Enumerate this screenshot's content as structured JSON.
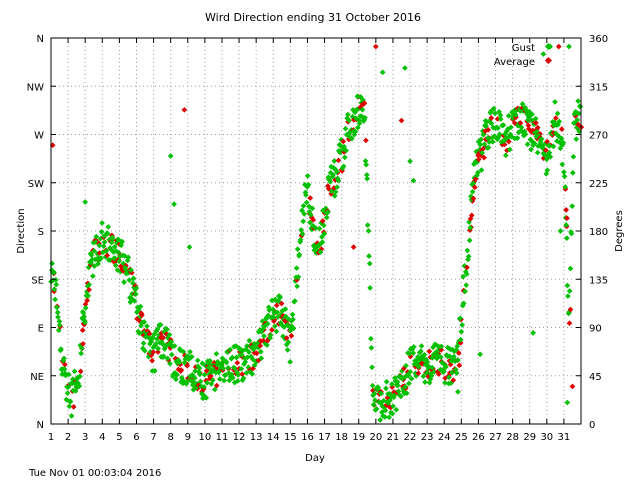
{
  "chart_data": {
    "type": "scatter",
    "title": "Wird Direction ending 31 October 2016",
    "xlabel": "Day",
    "ylabel_left": "Direction",
    "ylabel_right": "Degrees",
    "footer": "Tue Nov 01 00:03:04 2016",
    "xlim": [
      1,
      32
    ],
    "ylim": [
      0,
      360
    ],
    "grid": true,
    "legend": "top-right",
    "x_ticks": [
      "1",
      "2",
      "3",
      "4",
      "5",
      "6",
      "7",
      "8",
      "9",
      "10",
      "11",
      "12",
      "13",
      "14",
      "15",
      "16",
      "17",
      "18",
      "19",
      "20",
      "21",
      "22",
      "23",
      "24",
      "25",
      "26",
      "27",
      "28",
      "29",
      "30",
      "31"
    ],
    "left_ticks": [
      {
        "value": 0,
        "label": "N"
      },
      {
        "value": 45,
        "label": "NE"
      },
      {
        "value": 90,
        "label": "E"
      },
      {
        "value": 135,
        "label": "SE"
      },
      {
        "value": 180,
        "label": "S"
      },
      {
        "value": 225,
        "label": "SW"
      },
      {
        "value": 270,
        "label": "W"
      },
      {
        "value": 315,
        "label": "NW"
      },
      {
        "value": 360,
        "label": "N"
      }
    ],
    "right_ticks": [
      "0",
      "45",
      "90",
      "135",
      "180",
      "225",
      "270",
      "315",
      "360"
    ],
    "trend": [
      [
        1.0,
        140
      ],
      [
        1.3,
        120
      ],
      [
        1.6,
        70
      ],
      [
        1.9,
        40
      ],
      [
        2.2,
        25
      ],
      [
        2.6,
        45
      ],
      [
        3.0,
        110
      ],
      [
        3.5,
        160
      ],
      [
        4.0,
        170
      ],
      [
        4.5,
        165
      ],
      [
        5.0,
        160
      ],
      [
        5.5,
        140
      ],
      [
        6.0,
        110
      ],
      [
        6.5,
        80
      ],
      [
        7.0,
        65
      ],
      [
        7.5,
        80
      ],
      [
        8.0,
        65
      ],
      [
        8.5,
        55
      ],
      [
        9.0,
        55
      ],
      [
        9.5,
        45
      ],
      [
        10.0,
        40
      ],
      [
        10.5,
        45
      ],
      [
        11.0,
        55
      ],
      [
        11.5,
        58
      ],
      [
        12.0,
        55
      ],
      [
        12.5,
        60
      ],
      [
        13.0,
        65
      ],
      [
        13.5,
        85
      ],
      [
        14.0,
        105
      ],
      [
        14.5,
        100
      ],
      [
        15.0,
        75
      ],
      [
        15.3,
        120
      ],
      [
        15.6,
        180
      ],
      [
        16.0,
        220
      ],
      [
        16.4,
        170
      ],
      [
        16.8,
        175
      ],
      [
        17.2,
        215
      ],
      [
        17.6,
        230
      ],
      [
        18.0,
        250
      ],
      [
        18.5,
        280
      ],
      [
        19.0,
        295
      ],
      [
        19.3,
        300
      ],
      [
        19.6,
        165
      ],
      [
        19.8,
        25
      ],
      [
        20.2,
        20
      ],
      [
        20.6,
        22
      ],
      [
        21.0,
        25
      ],
      [
        21.4,
        38
      ],
      [
        21.8,
        45
      ],
      [
        22.2,
        65
      ],
      [
        22.6,
        55
      ],
      [
        23.0,
        55
      ],
      [
        23.5,
        60
      ],
      [
        24.0,
        55
      ],
      [
        24.5,
        52
      ],
      [
        24.8,
        58
      ],
      [
        25.1,
        120
      ],
      [
        25.4,
        160
      ],
      [
        25.7,
        225
      ],
      [
        26.0,
        245
      ],
      [
        26.5,
        270
      ],
      [
        27.0,
        285
      ],
      [
        27.5,
        260
      ],
      [
        28.0,
        280
      ],
      [
        28.5,
        285
      ],
      [
        29.0,
        275
      ],
      [
        29.5,
        265
      ],
      [
        30.0,
        250
      ],
      [
        30.5,
        285
      ],
      [
        31.0,
        250
      ],
      [
        31.3,
        90
      ],
      [
        31.6,
        280
      ],
      [
        32.0,
        290
      ]
    ],
    "outliers": [
      {
        "x": 8.0,
        "y": 250
      },
      {
        "x": 8.2,
        "y": 205
      },
      {
        "x": 8.8,
        "y": 293
      },
      {
        "x": 9.1,
        "y": 165
      },
      {
        "x": 3.0,
        "y": 207
      },
      {
        "x": 20.0,
        "y": 352
      },
      {
        "x": 20.4,
        "y": 328
      },
      {
        "x": 21.7,
        "y": 332
      },
      {
        "x": 21.5,
        "y": 283
      },
      {
        "x": 22.0,
        "y": 245
      },
      {
        "x": 22.2,
        "y": 227
      },
      {
        "x": 1.1,
        "y": 260
      },
      {
        "x": 29.8,
        "y": 345
      },
      {
        "x": 30.2,
        "y": 352
      },
      {
        "x": 30.7,
        "y": 352
      },
      {
        "x": 31.3,
        "y": 352
      },
      {
        "x": 31.2,
        "y": 20
      },
      {
        "x": 31.5,
        "y": 35
      },
      {
        "x": 30.8,
        "y": 180
      },
      {
        "x": 29.2,
        "y": 85
      },
      {
        "x": 18.7,
        "y": 165
      },
      {
        "x": 24.8,
        "y": 30
      },
      {
        "x": 26.1,
        "y": 65
      }
    ],
    "series": [
      {
        "name": "Gust",
        "color": "#00c000"
      },
      {
        "name": "Average",
        "color": "#e00000"
      }
    ]
  }
}
